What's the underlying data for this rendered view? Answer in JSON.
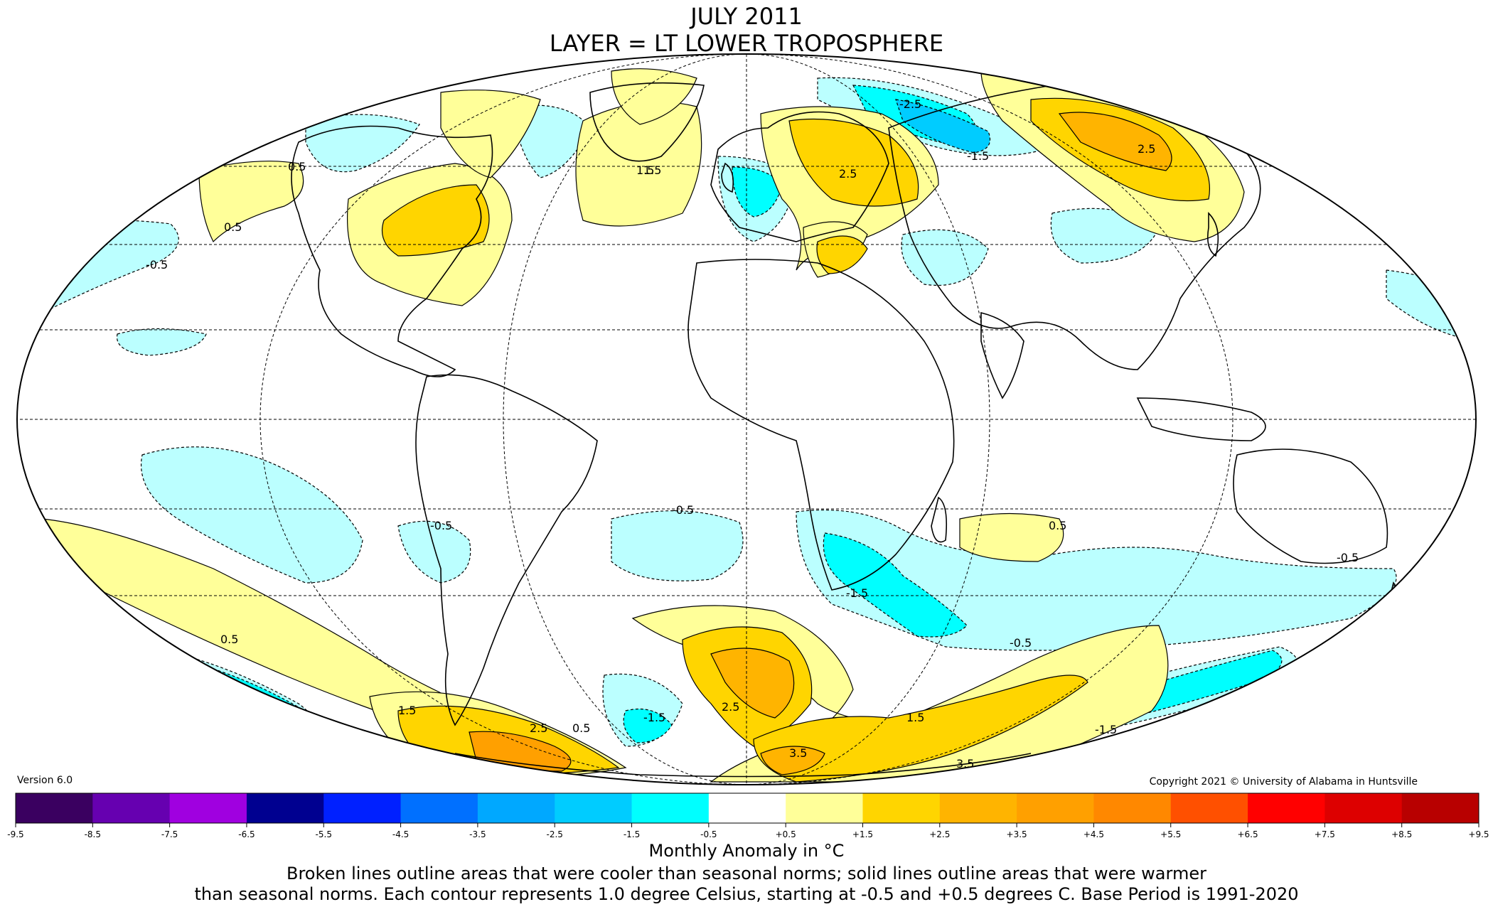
{
  "title_line1": "JULY 2011",
  "title_line2": "LAYER = LT LOWER TROPOSPHERE",
  "version": "Version 6.0",
  "copyright": "Copyright 2021 © University of Alabama in Huntsville",
  "colorbar": {
    "ticks": [
      "-9.5",
      "-8.5",
      "-7.5",
      "-6.5",
      "-5.5",
      "-4.5",
      "-3.5",
      "-2.5",
      "-1.5",
      "-0.5",
      "+0.5",
      "+1.5",
      "+2.5",
      "+3.5",
      "+4.5",
      "+5.5",
      "+6.5",
      "+7.5",
      "+8.5",
      "+9.5"
    ],
    "colors": [
      "#3a0060",
      "#6600b0",
      "#a000e0",
      "#b800ff",
      "#000090",
      "#0020ff",
      "#0070ff",
      "#00a8ff",
      "#00ccff",
      "#00ffff",
      "#bbffff",
      "#ffffff",
      "#ffff99",
      "#ffd500",
      "#ffb400",
      "#ffa000",
      "#ff8800",
      "#ff6e00",
      "#ff5000",
      "#ff0000",
      "#dd0000",
      "#b80000"
    ]
  },
  "caption_title": "Monthly Anomaly in °C",
  "caption_line1": "Broken lines outline areas that were cooler than seasonal norms; solid lines outline areas that were warmer",
  "caption_line2": "than seasonal norms. Each contour represents 1.0 degree Celsius, starting at -0.5 and +0.5 degrees C. Base Period is 1991-2020",
  "contour_labels": [
    "0.5",
    "-0.5",
    "0.5",
    "1.5",
    "2.5",
    "-1.5",
    "-2.5",
    "3.5",
    "2.5",
    "1.5",
    "-0.5",
    "0.5",
    "-1.5",
    "1.5",
    "2.5",
    "3.5",
    "-0.5",
    "-1.5",
    "0.5",
    "-0.5",
    "1.5",
    "2.5",
    "-0.5",
    "0.5",
    "-1.5"
  ]
}
